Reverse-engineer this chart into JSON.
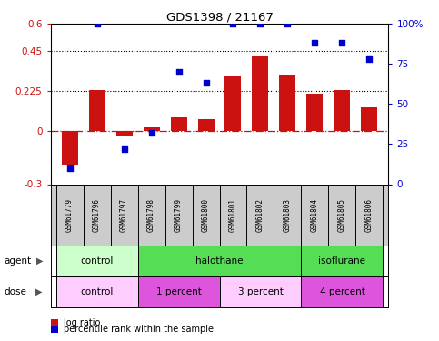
{
  "title": "GDS1398 / 21167",
  "samples": [
    "GSM61779",
    "GSM61796",
    "GSM61797",
    "GSM61798",
    "GSM61799",
    "GSM61800",
    "GSM61801",
    "GSM61802",
    "GSM61803",
    "GSM61804",
    "GSM61805",
    "GSM61806"
  ],
  "log_ratio": [
    -0.195,
    0.228,
    -0.03,
    0.02,
    0.075,
    0.065,
    0.305,
    0.42,
    0.315,
    0.21,
    0.228,
    0.13
  ],
  "percentile_rank": [
    10,
    100,
    22,
    32,
    70,
    63,
    100,
    100,
    100,
    88,
    88,
    78
  ],
  "bar_color": "#cc1111",
  "dot_color": "#0000cc",
  "ylim_left": [
    -0.3,
    0.6
  ],
  "ylim_right": [
    0,
    100
  ],
  "yticks_left": [
    -0.3,
    0,
    0.225,
    0.45,
    0.6
  ],
  "ytick_labels_left": [
    "-0.3",
    "0",
    "0.225",
    "0.45",
    "0.6"
  ],
  "yticks_right": [
    0,
    25,
    50,
    75,
    100
  ],
  "ytick_labels_right": [
    "0",
    "25",
    "50",
    "75",
    "100%"
  ],
  "hlines": [
    0.225,
    0.45
  ],
  "agent_groups": [
    {
      "label": "control",
      "start": 0,
      "end": 3,
      "color": "#ccffcc"
    },
    {
      "label": "halothane",
      "start": 3,
      "end": 9,
      "color": "#55dd55"
    },
    {
      "label": "isoflurane",
      "start": 9,
      "end": 12,
      "color": "#55dd55"
    }
  ],
  "dose_groups": [
    {
      "label": "control",
      "start": 0,
      "end": 3,
      "color": "#ffccff"
    },
    {
      "label": "1 percent",
      "start": 3,
      "end": 6,
      "color": "#dd55dd"
    },
    {
      "label": "3 percent",
      "start": 6,
      "end": 9,
      "color": "#ffccff"
    },
    {
      "label": "4 percent",
      "start": 9,
      "end": 12,
      "color": "#dd55dd"
    }
  ],
  "legend_items": [
    {
      "label": "log ratio",
      "color": "#cc1111"
    },
    {
      "label": "percentile rank within the sample",
      "color": "#0000cc"
    }
  ],
  "sample_bg": "#cccccc"
}
